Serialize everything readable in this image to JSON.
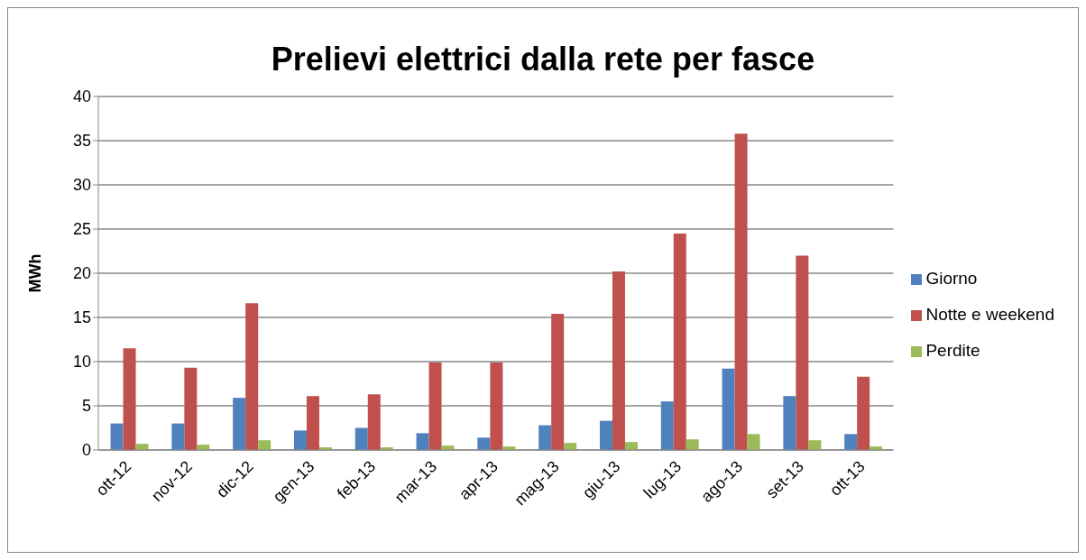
{
  "chart_data": {
    "type": "bar",
    "title": "Prelievi elettrici dalla rete per fasce",
    "ylabel": "MWh",
    "categories": [
      "ott-12",
      "nov-12",
      "dic-12",
      "gen-13",
      "feb-13",
      "mar-13",
      "apr-13",
      "mag-13",
      "giu-13",
      "lug-13",
      "ago-13",
      "set-13",
      "ott-13"
    ],
    "series": [
      {
        "name": "Giorno",
        "color": "#4f81bd",
        "values": [
          3.0,
          3.0,
          5.9,
          2.2,
          2.5,
          1.9,
          1.4,
          2.8,
          3.3,
          5.5,
          9.2,
          6.1,
          1.8
        ]
      },
      {
        "name": "Notte e weekend",
        "color": "#c0504d",
        "values": [
          11.5,
          9.3,
          16.6,
          6.1,
          6.3,
          9.9,
          9.9,
          15.4,
          20.2,
          24.5,
          35.8,
          22.0,
          8.3
        ]
      },
      {
        "name": "Perdite",
        "color": "#9bbb59",
        "values": [
          0.7,
          0.6,
          1.1,
          0.3,
          0.3,
          0.5,
          0.4,
          0.8,
          0.9,
          1.2,
          1.8,
          1.1,
          0.4
        ]
      }
    ],
    "ylim": [
      0,
      40
    ],
    "yticks": [
      0,
      5,
      10,
      15,
      20,
      25,
      30,
      35,
      40
    ],
    "grid": "y",
    "legend": "right"
  }
}
